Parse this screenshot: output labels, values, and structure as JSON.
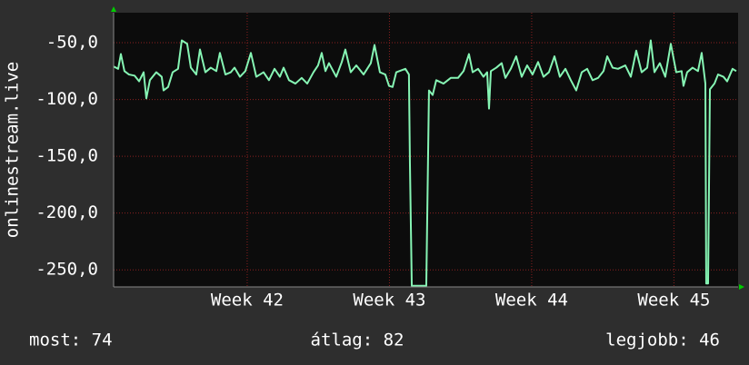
{
  "chart_data": {
    "type": "line",
    "y_label": "onlinestream.live",
    "footer": [
      "most: 74",
      "átlag: 82",
      "legjobb: 46"
    ],
    "xlim": [
      41.061,
      45.451
    ],
    "ylim": [
      -265,
      -23.6
    ],
    "xticks": [
      {
        "value": 42,
        "label": "Week 42"
      },
      {
        "value": 43,
        "label": "Week 43"
      },
      {
        "value": 44,
        "label": "Week 44"
      },
      {
        "value": 45,
        "label": "Week 45"
      }
    ],
    "yticks": [
      {
        "value": -50,
        "label": "-50,0"
      },
      {
        "value": -100,
        "label": "-100,0"
      },
      {
        "value": -150,
        "label": "-150,0"
      },
      {
        "value": -200,
        "label": "-200,0"
      },
      {
        "value": -250,
        "label": "-250,0"
      }
    ],
    "grid": true,
    "series": [
      {
        "color": "#86f5b4",
        "x": [
          41.061,
          41.093,
          41.112,
          41.137,
          41.169,
          41.208,
          41.24,
          41.272,
          41.291,
          41.316,
          41.361,
          41.399,
          41.412,
          41.444,
          41.476,
          41.514,
          41.54,
          41.578,
          41.604,
          41.642,
          41.668,
          41.706,
          41.744,
          41.783,
          41.808,
          41.847,
          41.885,
          41.911,
          41.949,
          41.987,
          42.026,
          42.064,
          42.115,
          42.153,
          42.192,
          42.23,
          42.256,
          42.294,
          42.339,
          42.383,
          42.422,
          42.466,
          42.498,
          42.524,
          42.55,
          42.575,
          42.626,
          42.665,
          42.69,
          42.728,
          42.767,
          42.818,
          42.869,
          42.895,
          42.933,
          42.971,
          42.997,
          43.022,
          43.048,
          43.112,
          43.137,
          43.144,
          43.157,
          43.259,
          43.278,
          43.304,
          43.329,
          43.38,
          43.431,
          43.482,
          43.521,
          43.559,
          43.585,
          43.623,
          43.661,
          43.687,
          43.7,
          43.713,
          43.751,
          43.789,
          43.815,
          43.853,
          43.891,
          43.93,
          43.968,
          44.006,
          44.045,
          44.083,
          44.121,
          44.16,
          44.198,
          44.237,
          44.275,
          44.313,
          44.352,
          44.39,
          44.428,
          44.467,
          44.505,
          44.531,
          44.569,
          44.607,
          44.658,
          44.697,
          44.735,
          44.773,
          44.812,
          44.837,
          44.863,
          44.901,
          44.939,
          44.978,
          45.016,
          45.054,
          45.067,
          45.093,
          45.131,
          45.169,
          45.195,
          45.221,
          45.227,
          45.24,
          45.253,
          45.285,
          45.31,
          45.348,
          45.374,
          45.412,
          45.438
        ],
        "values": [
          -71,
          -73,
          -60,
          -75,
          -78,
          -79,
          -84,
          -76,
          -99,
          -83,
          -76,
          -80,
          -92,
          -89,
          -76,
          -73,
          -48,
          -51,
          -72,
          -78,
          -56,
          -76,
          -72,
          -75,
          -59,
          -78,
          -76,
          -72,
          -80,
          -75,
          -59,
          -80,
          -76,
          -83,
          -73,
          -80,
          -72,
          -83,
          -86,
          -81,
          -86,
          -76,
          -70,
          -59,
          -75,
          -68,
          -80,
          -67,
          -56,
          -76,
          -70,
          -78,
          -68,
          -52,
          -76,
          -78,
          -88,
          -89,
          -76,
          -73,
          -78,
          -156,
          -264,
          -264,
          -92,
          -96,
          -83,
          -86,
          -81,
          -81,
          -75,
          -60,
          -76,
          -73,
          -80,
          -76,
          -108,
          -75,
          -72,
          -68,
          -81,
          -73,
          -62,
          -80,
          -70,
          -78,
          -67,
          -80,
          -76,
          -62,
          -80,
          -73,
          -83,
          -92,
          -76,
          -73,
          -83,
          -81,
          -75,
          -62,
          -72,
          -73,
          -70,
          -80,
          -57,
          -76,
          -72,
          -48,
          -76,
          -68,
          -80,
          -51,
          -76,
          -75,
          -88,
          -76,
          -72,
          -75,
          -59,
          -86,
          -262,
          -262,
          -91,
          -86,
          -78,
          -80,
          -84,
          -73,
          -75
        ]
      }
    ]
  }
}
